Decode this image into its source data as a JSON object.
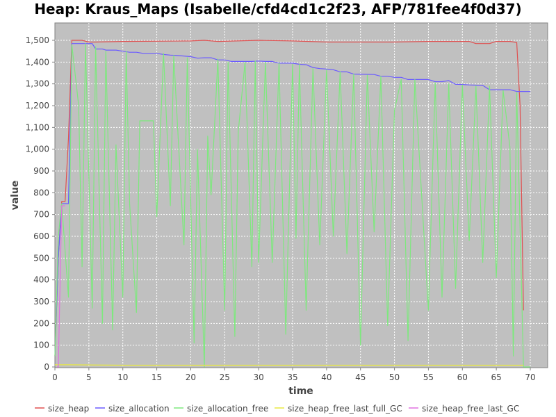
{
  "chart_data": {
    "type": "line",
    "title": "Heap: Kraus_Maps (Isabelle/cfd4cd1c2f23, AFP/781fee4f0d37)",
    "xlabel": "time",
    "ylabel": "value",
    "xlim": [
      0,
      72.5
    ],
    "ylim": [
      0,
      1500
    ],
    "x_ticks": [
      0,
      5,
      10,
      15,
      20,
      25,
      30,
      35,
      40,
      45,
      50,
      55,
      60,
      65,
      70
    ],
    "y_ticks": [
      0,
      100,
      200,
      300,
      400,
      500,
      600,
      700,
      800,
      900,
      1000,
      1100,
      1200,
      1300,
      1400,
      1500
    ],
    "y_tick_labels": [
      "0",
      "100",
      "200",
      "300",
      "400",
      "500",
      "600",
      "700",
      "800",
      "900",
      "1,000",
      "1,100",
      "1,200",
      "1,300",
      "1,400",
      "1,500"
    ],
    "grid": true,
    "legend_position": "bottom",
    "series": [
      {
        "name": "size_heap",
        "color": "#e05050",
        "points": [
          [
            0,
            50
          ],
          [
            0.5,
            500
          ],
          [
            1,
            760
          ],
          [
            1.5,
            760
          ],
          [
            2,
            1050
          ],
          [
            2.5,
            1500
          ],
          [
            4,
            1500
          ],
          [
            5,
            1492
          ],
          [
            6,
            1492
          ],
          [
            10,
            1495
          ],
          [
            20,
            1497
          ],
          [
            22,
            1500
          ],
          [
            24,
            1495
          ],
          [
            30,
            1500
          ],
          [
            35,
            1497
          ],
          [
            40,
            1492
          ],
          [
            50,
            1492
          ],
          [
            55,
            1495
          ],
          [
            61,
            1495
          ],
          [
            62,
            1485
          ],
          [
            64,
            1485
          ],
          [
            65,
            1495
          ],
          [
            67,
            1495
          ],
          [
            68,
            1490
          ],
          [
            68.5,
            1200
          ],
          [
            69,
            260
          ]
        ]
      },
      {
        "name": "size_allocation",
        "color": "#6b5bff",
        "points": [
          [
            0,
            50
          ],
          [
            0.5,
            500
          ],
          [
            1,
            750
          ],
          [
            2,
            750
          ],
          [
            2.5,
            1485
          ],
          [
            5.5,
            1485
          ],
          [
            6,
            1460
          ],
          [
            7,
            1460
          ],
          [
            7.5,
            1455
          ],
          [
            9,
            1455
          ],
          [
            10,
            1450
          ],
          [
            11,
            1445
          ],
          [
            12,
            1445
          ],
          [
            13,
            1440
          ],
          [
            15,
            1440
          ],
          [
            16,
            1435
          ],
          [
            17,
            1432
          ],
          [
            18,
            1430
          ],
          [
            19,
            1428
          ],
          [
            20,
            1425
          ],
          [
            21,
            1418
          ],
          [
            22,
            1420
          ],
          [
            23,
            1420
          ],
          [
            24,
            1410
          ],
          [
            25,
            1410
          ],
          [
            26,
            1403
          ],
          [
            29,
            1403
          ],
          [
            30,
            1405
          ],
          [
            31,
            1403
          ],
          [
            32,
            1403
          ],
          [
            33,
            1395
          ],
          [
            35,
            1395
          ],
          [
            36,
            1390
          ],
          [
            37,
            1388
          ],
          [
            38,
            1375
          ],
          [
            39,
            1370
          ],
          [
            40,
            1368
          ],
          [
            41,
            1365
          ],
          [
            42,
            1355
          ],
          [
            43,
            1355
          ],
          [
            44,
            1345
          ],
          [
            47,
            1343
          ],
          [
            48,
            1335
          ],
          [
            49,
            1335
          ],
          [
            50,
            1330
          ],
          [
            51,
            1330
          ],
          [
            52,
            1320
          ],
          [
            55,
            1320
          ],
          [
            56,
            1310
          ],
          [
            57,
            1310
          ],
          [
            58,
            1315
          ],
          [
            59,
            1298
          ],
          [
            60,
            1297
          ],
          [
            61,
            1295
          ],
          [
            63,
            1293
          ],
          [
            64,
            1273
          ],
          [
            66,
            1273
          ],
          [
            67,
            1273
          ],
          [
            68,
            1265
          ],
          [
            69,
            1265
          ],
          [
            70,
            1265
          ]
        ]
      },
      {
        "name": "size_allocation_free",
        "color": "#7ee87e",
        "points": [
          [
            0,
            50
          ],
          [
            0.5,
            600
          ],
          [
            1,
            750
          ],
          [
            2,
            320
          ],
          [
            2.5,
            1480
          ],
          [
            3.5,
            1200
          ],
          [
            4,
            460
          ],
          [
            4.5,
            1485
          ],
          [
            5.5,
            270
          ],
          [
            6,
            1470
          ],
          [
            7,
            200
          ],
          [
            7.5,
            1450
          ],
          [
            8.5,
            170
          ],
          [
            9,
            1020
          ],
          [
            10,
            320
          ],
          [
            10.5,
            1450
          ],
          [
            11,
            750
          ],
          [
            12,
            250
          ],
          [
            12.5,
            1130
          ],
          [
            14.5,
            1130
          ],
          [
            15,
            690
          ],
          [
            16,
            1440
          ],
          [
            17,
            740
          ],
          [
            17.5,
            1430
          ],
          [
            19,
            560
          ],
          [
            19.5,
            1420
          ],
          [
            20.5,
            110
          ],
          [
            21,
            1000
          ],
          [
            22,
            0
          ],
          [
            22.5,
            1060
          ],
          [
            23,
            790
          ],
          [
            24,
            1415
          ],
          [
            25,
            260
          ],
          [
            25.5,
            1400
          ],
          [
            26.5,
            140
          ],
          [
            27,
            1080
          ],
          [
            28,
            1400
          ],
          [
            29,
            460
          ],
          [
            29.5,
            1405
          ],
          [
            30,
            480
          ],
          [
            31,
            1400
          ],
          [
            32,
            480
          ],
          [
            33,
            1395
          ],
          [
            34,
            150
          ],
          [
            35,
            1390
          ],
          [
            35.5,
            590
          ],
          [
            36,
            1390
          ],
          [
            37,
            260
          ],
          [
            38,
            1370
          ],
          [
            39,
            560
          ],
          [
            40,
            1365
          ],
          [
            41,
            600
          ],
          [
            42,
            1355
          ],
          [
            43,
            520
          ],
          [
            44,
            1345
          ],
          [
            45,
            100
          ],
          [
            46,
            1340
          ],
          [
            47,
            620
          ],
          [
            48,
            1335
          ],
          [
            49,
            190
          ],
          [
            50,
            1180
          ],
          [
            51,
            1320
          ],
          [
            52,
            120
          ],
          [
            53,
            1320
          ],
          [
            55,
            260
          ],
          [
            56,
            1305
          ],
          [
            57,
            320
          ],
          [
            58,
            1300
          ],
          [
            59,
            360
          ],
          [
            60,
            1295
          ],
          [
            61,
            580
          ],
          [
            62,
            1290
          ],
          [
            63,
            480
          ],
          [
            64,
            1290
          ],
          [
            65,
            410
          ],
          [
            66,
            1270
          ],
          [
            67,
            1010
          ],
          [
            67.5,
            50
          ],
          [
            68,
            1260
          ],
          [
            69,
            0
          ],
          [
            70,
            0
          ]
        ]
      },
      {
        "name": "size_heap_free_last_full_GC",
        "color": "#e8e840",
        "points": [
          [
            0,
            10
          ],
          [
            2,
            10
          ],
          [
            10,
            8
          ],
          [
            20,
            8
          ],
          [
            30,
            8
          ],
          [
            40,
            8
          ],
          [
            50,
            8
          ],
          [
            60,
            8
          ],
          [
            69,
            8
          ]
        ]
      },
      {
        "name": "size_heap_free_last_GC",
        "color": "#e070e0",
        "points": [
          [
            0.3,
            0
          ],
          [
            0.5,
            0
          ],
          [
            1,
            740
          ],
          [
            1.5,
            740
          ]
        ]
      }
    ]
  }
}
